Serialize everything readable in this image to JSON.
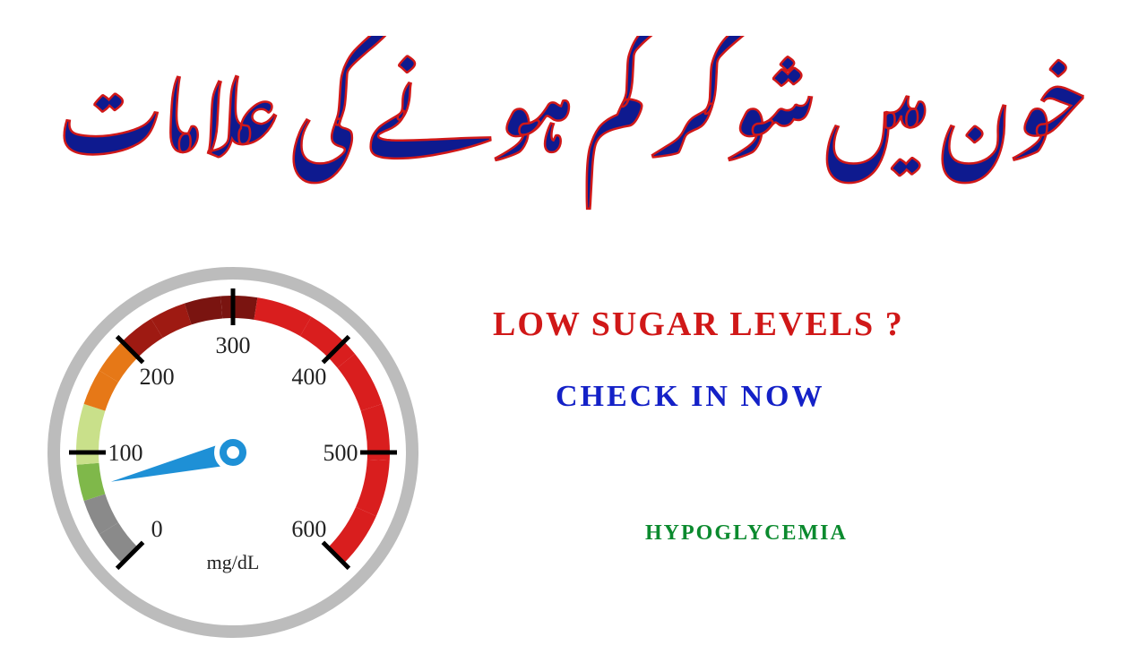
{
  "title_urdu": "خون میں شوگر کم ہونے کی علامات",
  "title_color": "#0e1a8f",
  "title_stroke": "#d01818",
  "text_right": {
    "line1": "LOW SUGAR LEVELS ?",
    "line1_color": "#d01818",
    "line2": "CHECK IN NOW",
    "line2_color": "#1421c7",
    "line3": "HYPOGLYCEMIA",
    "line3_color": "#0b8a2e"
  },
  "gauge": {
    "type": "gauge",
    "unit_label": "mg/dL",
    "min": 0,
    "max": 600,
    "value": 70,
    "start_angle": -225,
    "end_angle": 45,
    "tick_labels": [
      0,
      100,
      200,
      300,
      400,
      500,
      600
    ],
    "label_fontsize": 26,
    "label_color": "#222222",
    "dial_outer_color": "#bcbcbc",
    "dial_inner_bg": "#ffffff",
    "needle_color": "#1e90d6",
    "needle_hub_fill": "#1e90d6",
    "needle_hub_stroke": "#ffffff",
    "segments": [
      {
        "from": 0,
        "to": 60,
        "color": "#8a8a8a"
      },
      {
        "from": 60,
        "to": 90,
        "color": "#7fb84a"
      },
      {
        "from": 90,
        "to": 140,
        "color": "#c9e08a"
      },
      {
        "from": 140,
        "to": 200,
        "color": "#e67817"
      },
      {
        "from": 200,
        "to": 260,
        "color": "#9e1a12"
      },
      {
        "from": 260,
        "to": 320,
        "color": "#7a1410"
      },
      {
        "from": 320,
        "to": 600,
        "color": "#d91e1e"
      }
    ],
    "major_ticks": [
      0,
      100,
      200,
      300,
      400,
      500,
      600
    ],
    "tick_color": "#000000"
  }
}
